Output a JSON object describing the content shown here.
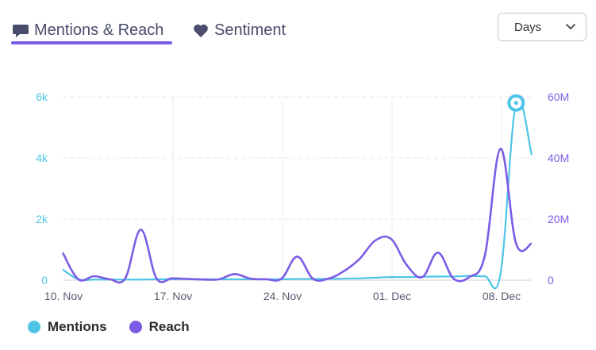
{
  "tabs": [
    {
      "label": "Mentions & Reach",
      "icon": "speech-bubble-icon",
      "active": true
    },
    {
      "label": "Sentiment",
      "icon": "heart-icon",
      "active": false
    }
  ],
  "period_select": {
    "value": "Days"
  },
  "colors": {
    "mentions": "#4ec5e6",
    "reach": "#7c5ce6",
    "accent": "#7c5ce6"
  },
  "chart_data": {
    "type": "line",
    "x": [
      "10. Nov",
      "11. Nov",
      "12. Nov",
      "13. Nov",
      "14. Nov",
      "15. Nov",
      "16. Nov",
      "17. Nov",
      "18. Nov",
      "19. Nov",
      "20. Nov",
      "21. Nov",
      "22. Nov",
      "23. Nov",
      "24. Nov",
      "25. Nov",
      "26. Nov",
      "27. Nov",
      "28. Nov",
      "29. Nov",
      "30. Nov",
      "01. Dec",
      "02. Dec",
      "03. Dec",
      "04. Dec",
      "05. Dec",
      "06. Dec",
      "07. Dec",
      "08. Dec",
      "09. Dec",
      "10. Dec"
    ],
    "x_tick_labels": [
      "10. Nov",
      "17. Nov",
      "24. Nov",
      "01. Dec",
      "08. Dec"
    ],
    "series": [
      {
        "name": "Mentions",
        "axis": "left",
        "values": [
          350,
          30,
          20,
          20,
          20,
          20,
          30,
          30,
          40,
          30,
          30,
          30,
          30,
          30,
          30,
          40,
          40,
          40,
          50,
          60,
          80,
          100,
          100,
          110,
          120,
          120,
          140,
          130,
          200,
          5800,
          4100
        ]
      },
      {
        "name": "Reach",
        "axis": "right",
        "values": [
          9000000,
          300000,
          1300000,
          300000,
          600000,
          16500000,
          600000,
          600000,
          400000,
          200000,
          300000,
          2000000,
          500000,
          300000,
          500000,
          7700000,
          500000,
          500000,
          3000000,
          7000000,
          13000000,
          13500000,
          5000000,
          1000000,
          9000000,
          500000,
          1000000,
          8000000,
          43000000,
          12000000,
          12000000
        ]
      }
    ],
    "y_left": {
      "ticks": [
        "0",
        "2k",
        "4k",
        "6k"
      ],
      "min": 0,
      "max": 6000
    },
    "y_right": {
      "ticks": [
        "0",
        "20M",
        "40M",
        "60M"
      ],
      "min": 0,
      "max": 60000000
    },
    "highlight": {
      "series": "Mentions",
      "index": 29
    }
  },
  "legend": [
    {
      "label": "Mentions",
      "color": "#4ec5e6"
    },
    {
      "label": "Reach",
      "color": "#7c5ce6"
    }
  ]
}
